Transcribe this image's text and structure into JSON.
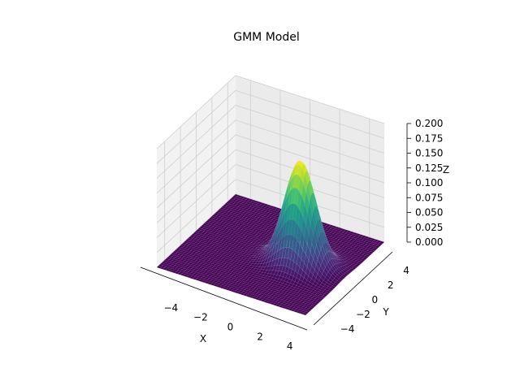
{
  "chart_data": {
    "type": "surface3d",
    "title": "GMM Model",
    "xlabel": "X",
    "ylabel": "Y",
    "zlabel": "Z",
    "xlim": [
      -5,
      5
    ],
    "ylim": [
      -5,
      5
    ],
    "zlim": [
      0,
      0.2
    ],
    "x_ticks": [
      "−4",
      "−2",
      "0",
      "2",
      "4"
    ],
    "y_ticks": [
      "−4",
      "−2",
      "0",
      "2",
      "4"
    ],
    "z_ticks": [
      "0.000",
      "0.025",
      "0.050",
      "0.075",
      "0.100",
      "0.125",
      "0.150",
      "0.175",
      "0.200"
    ],
    "grid": true,
    "colormap": "viridis",
    "gaussian": {
      "mean_x": 2.0,
      "mean_y": 0.0,
      "sigma_x": 1.0,
      "sigma_y": 0.85,
      "peak": 0.175
    }
  }
}
